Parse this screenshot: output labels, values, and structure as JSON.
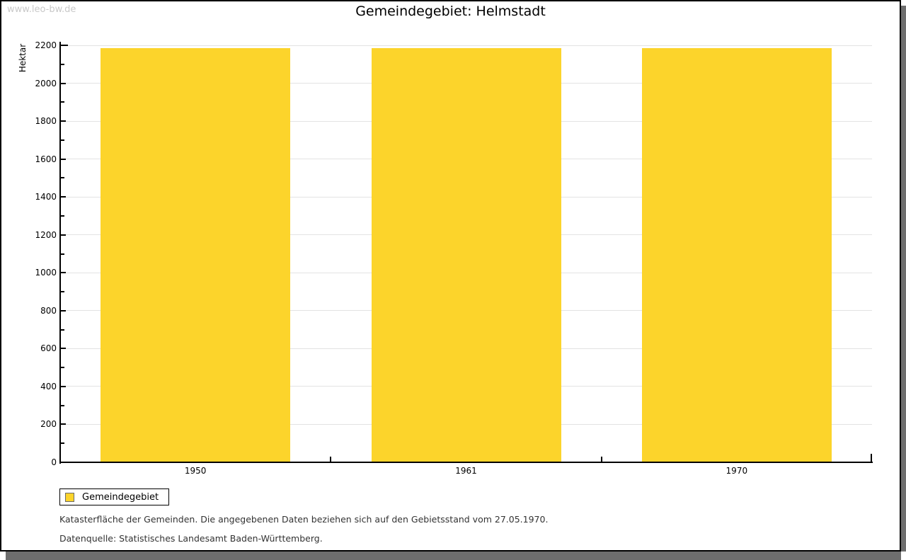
{
  "watermark": "www.leo-bw.de",
  "title": "Gemeindegebiet: Helmstadt",
  "chart_data": {
    "type": "bar",
    "title": "Gemeindegebiet: Helmstadt",
    "categories": [
      "1950",
      "1961",
      "1970"
    ],
    "series": [
      {
        "name": "Gemeindegebiet",
        "values": [
          2185,
          2185,
          2185
        ]
      }
    ],
    "xlabel": "",
    "ylabel": "Hektar",
    "ylim": [
      0,
      2200
    ],
    "y_major_step": 200,
    "y_minor_step": 100,
    "grid": true,
    "legend_position": "bottom-left",
    "bar_color": "#fcd42b"
  },
  "legend": {
    "label": "Gemeindegebiet"
  },
  "footnotes": {
    "line1": "Katasterfläche der Gemeinden. Die angegebenen Daten beziehen sich auf den Gebietsstand vom 27.05.1970.",
    "line2": "Datenquelle: Statistisches Landesamt Baden-Württemberg."
  },
  "colors": {
    "bar": "#fcd42b",
    "grid": "#e3e3e3",
    "axis": "#000000",
    "shadow": "#6e6e6e",
    "watermark": "#c9c9c9",
    "footnote_text": "#333333"
  }
}
